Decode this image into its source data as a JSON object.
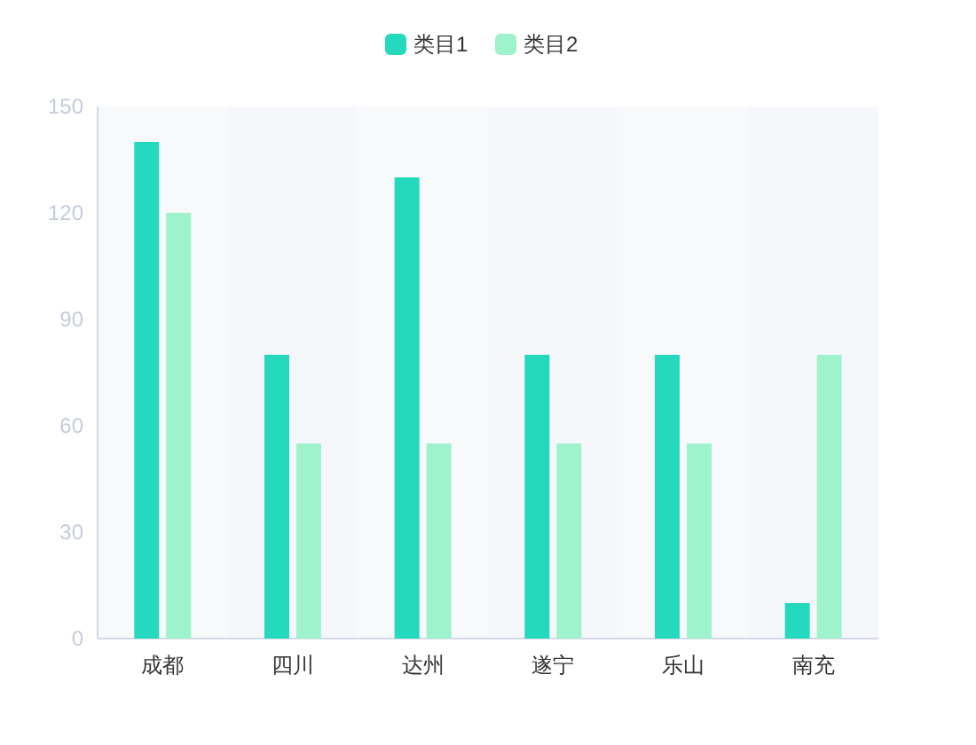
{
  "chart_data": {
    "type": "bar",
    "categories": [
      "成都",
      "四川",
      "达州",
      "遂宁",
      "乐山",
      "南充"
    ],
    "series": [
      {
        "name": "类目1",
        "color": "#25d9be",
        "values": [
          140,
          80,
          130,
          80,
          80,
          10
        ]
      },
      {
        "name": "类目2",
        "color": "#9ef3cc",
        "values": [
          120,
          55,
          55,
          55,
          55,
          80
        ]
      }
    ],
    "ylim": [
      0,
      150
    ],
    "yticks": [
      0,
      30,
      60,
      90,
      120,
      150
    ],
    "legend": "top"
  }
}
